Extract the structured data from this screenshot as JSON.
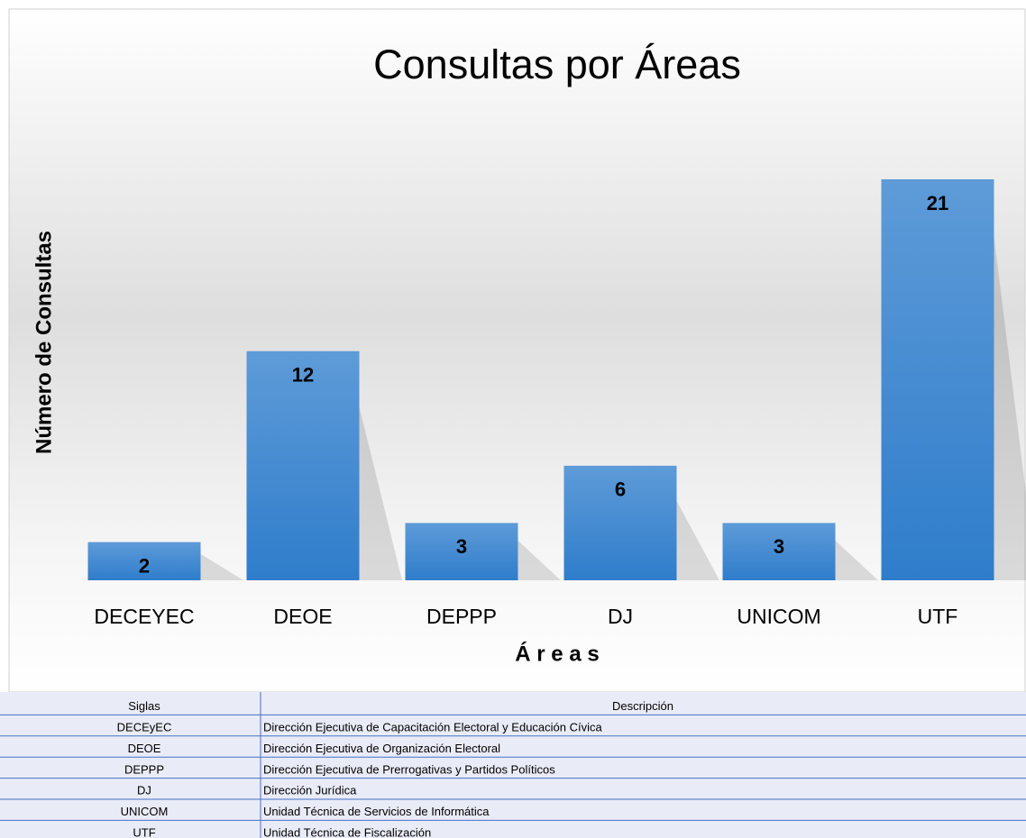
{
  "chart_data": {
    "type": "bar",
    "title": "Consultas por Áreas",
    "x_label": "Á r e a s",
    "y_label": "Número de Consultas",
    "categories": [
      "DECEYEC",
      "DEOE",
      "DEPPP",
      "DJ",
      "UNICOM",
      "UTF"
    ],
    "values": [
      2,
      12,
      3,
      6,
      3,
      21
    ],
    "color": "#4a8fd6"
  },
  "table": {
    "header": [
      "Siglas",
      "Descripción"
    ],
    "rows": [
      [
        "DECEyEC",
        "Dirección Ejecutiva de Capacitación Electoral y Educación Cívica"
      ],
      [
        "DEOE",
        "Dirección Ejecutiva de Organización Electoral"
      ],
      [
        "DEPPP",
        "Dirección Ejecutiva de Prerrogativas y Partidos Políticos"
      ],
      [
        "DJ",
        "Dirección Jurídica"
      ],
      [
        "UNICOM",
        "Unidad Técnica de Servicios de Informática"
      ],
      [
        "UTF",
        "Unidad Técnica de Fiscalización"
      ]
    ]
  }
}
